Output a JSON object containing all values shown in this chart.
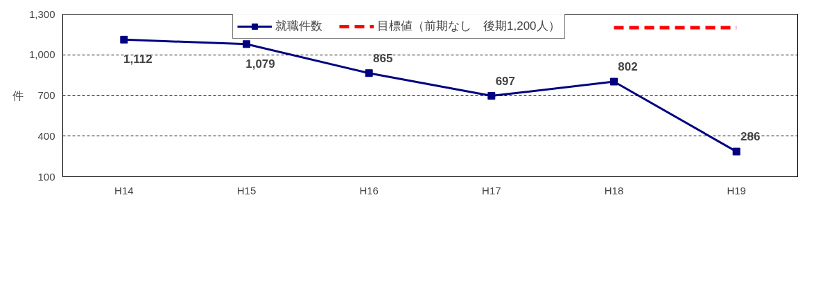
{
  "chart_data": {
    "type": "line",
    "ylabel": "件",
    "categories": [
      "H14",
      "H15",
      "H16",
      "H17",
      "H18",
      "H19"
    ],
    "ylim": [
      100,
      1300
    ],
    "yticks": [
      100,
      400,
      700,
      {
        "value": 1000,
        "label": "1,000"
      },
      {
        "value": 1300,
        "label": "1,300"
      }
    ],
    "grid": "y",
    "legend": "top",
    "series": [
      {
        "name": "就職件数",
        "color": "#000080",
        "marker": "square",
        "line_style": "solid",
        "values": [
          1112,
          1079,
          865,
          697,
          802,
          286
        ],
        "value_labels": [
          "1,112",
          "1,079",
          "865",
          "697",
          "802",
          "286"
        ]
      },
      {
        "name": "目標値（前期なし　後期1,200人）",
        "color": "#ff0000",
        "marker": "none",
        "line_style": "dashed",
        "values": [
          null,
          null,
          null,
          null,
          1200,
          1200
        ]
      }
    ]
  }
}
